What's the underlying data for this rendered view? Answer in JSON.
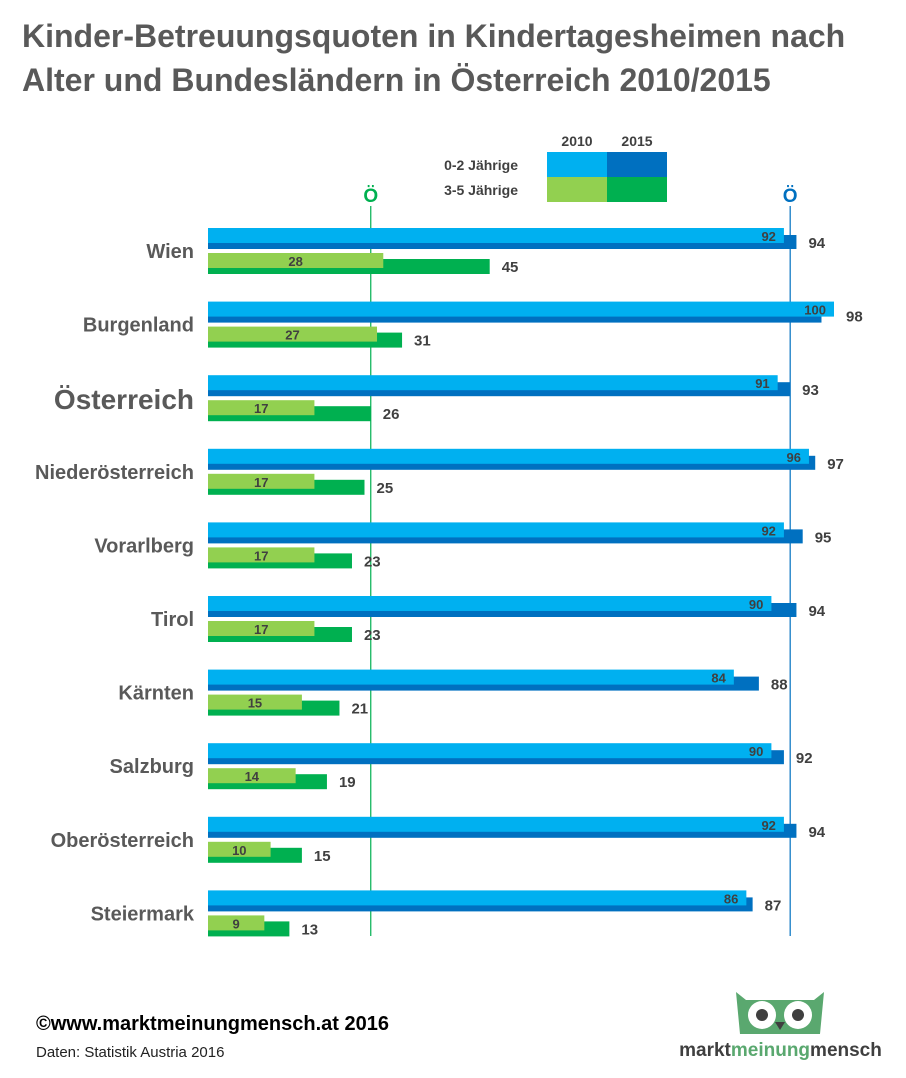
{
  "title": "Kinder-Betreuungsquoten in Kindertagesheimen nach\nAlter und Bundesländern in Österreich 2010/2015",
  "legend": {
    "years": [
      "2010",
      "2015"
    ],
    "rows": [
      "0-2 Jährige",
      "3-5 Jährige"
    ]
  },
  "colors": {
    "young2010": "#00b0f0",
    "young2015": "#0070c0",
    "old2010": "#92d050",
    "old2015": "#00b050",
    "refOld": "#00b050",
    "refYoung": "#0070c0"
  },
  "chart_data": {
    "type": "bar",
    "orientation": "horizontal",
    "categories": [
      "Wien",
      "Burgenland",
      "Österreich",
      "Niederösterreich",
      "Vorarlberg",
      "Tirol",
      "Kärnten",
      "Salzburg",
      "Oberösterreich",
      "Steiermark"
    ],
    "emphasized_category": "Österreich",
    "series": [
      {
        "name": "0-2 Jährige 2010",
        "values": [
          92,
          100,
          91,
          96,
          92,
          90,
          84,
          90,
          92,
          86
        ]
      },
      {
        "name": "0-2 Jährige 2015",
        "values": [
          94,
          98,
          93,
          97,
          95,
          94,
          88,
          92,
          94,
          87
        ]
      },
      {
        "name": "3-5 Jährige 2010",
        "values": [
          28,
          27,
          17,
          17,
          17,
          17,
          15,
          14,
          10,
          9
        ]
      },
      {
        "name": "3-5 Jährige 2015",
        "values": [
          45,
          31,
          26,
          25,
          23,
          23,
          21,
          19,
          15,
          13
        ]
      }
    ],
    "reference_lines": [
      {
        "label": "Ö",
        "value": 26,
        "group": "3-5 Jährige"
      },
      {
        "label": "Ö",
        "value": 93,
        "group": "0-2 Jährige"
      }
    ],
    "xlim": [
      0,
      100
    ],
    "grid": false,
    "legend_position": "top-right"
  },
  "footer": {
    "copyright": "©www.marktmeinungmensch.at 2016",
    "source": "Daten: Statistik Austria 2016"
  },
  "logo": {
    "part1": "markt",
    "part2": "meinung",
    "part3": "mensch"
  }
}
